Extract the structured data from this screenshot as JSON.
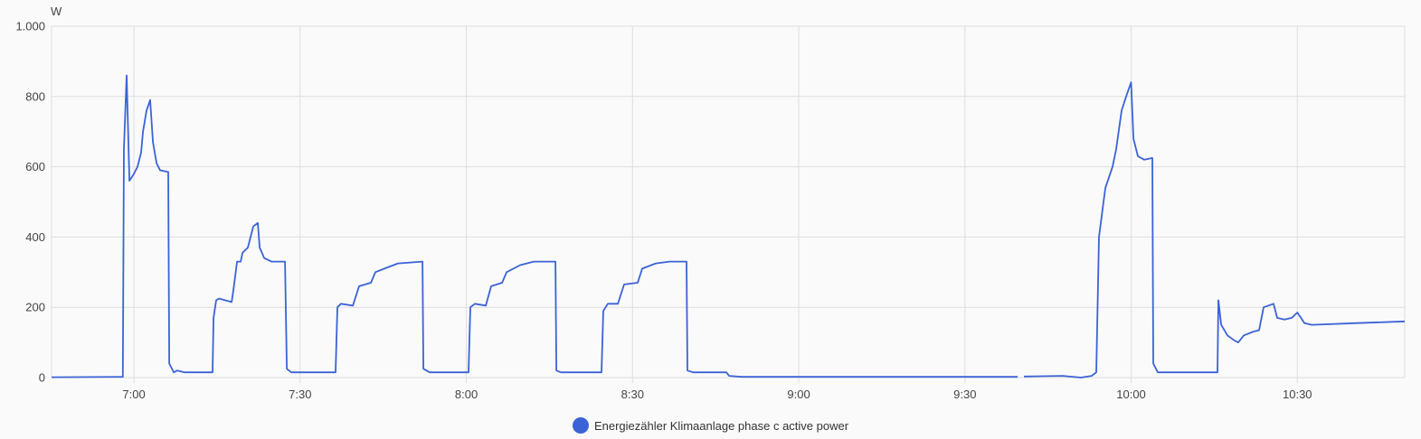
{
  "chart_data": {
    "type": "line",
    "ylabel": "W",
    "ylim": [
      0,
      1000
    ],
    "xlim": [
      "6:45:08",
      "10:49:23"
    ],
    "y_ticks": [
      {
        "value": 0,
        "label": "0"
      },
      {
        "value": 200,
        "label": "200"
      },
      {
        "value": 400,
        "label": "400"
      },
      {
        "value": 600,
        "label": "600"
      },
      {
        "value": 800,
        "label": "800"
      },
      {
        "value": 1000,
        "label": "1.000"
      }
    ],
    "x_ticks": [
      {
        "value": "7:00",
        "label": "7:00"
      },
      {
        "value": "7:30",
        "label": "7:30"
      },
      {
        "value": "8:00",
        "label": "8:00"
      },
      {
        "value": "8:30",
        "label": "8:30"
      },
      {
        "value": "9:00",
        "label": "9:00"
      },
      {
        "value": "9:30",
        "label": "9:30"
      },
      {
        "value": "10:00",
        "label": "10:00"
      },
      {
        "value": "10:30",
        "label": "10:30"
      }
    ],
    "grid": true,
    "legend_placement": "bottom",
    "series": [
      {
        "name": "Energiezähler Klimaanlage phase c active power",
        "color": "#3b63d6",
        "points": [
          [
            "6:45:08",
            1
          ],
          [
            "6:58:00",
            2
          ],
          [
            "6:58:12",
            650
          ],
          [
            "6:58:41",
            860
          ],
          [
            "6:59:11",
            560
          ],
          [
            "7:00:00",
            580
          ],
          [
            "7:00:39",
            600
          ],
          [
            "7:01:18",
            640
          ],
          [
            "7:01:38",
            700
          ],
          [
            "7:02:17",
            760
          ],
          [
            "7:02:56",
            790
          ],
          [
            "7:03:26",
            670
          ],
          [
            "7:04:05",
            610
          ],
          [
            "7:04:44",
            590
          ],
          [
            "7:06:12",
            585
          ],
          [
            "7:06:22",
            40
          ],
          [
            "7:07:11",
            15
          ],
          [
            "7:07:50",
            20
          ],
          [
            "7:09:09",
            15
          ],
          [
            "7:14:12",
            15
          ],
          [
            "7:14:22",
            170
          ],
          [
            "7:14:51",
            220
          ],
          [
            "7:15:21",
            225
          ],
          [
            "7:17:38",
            215
          ],
          [
            "7:17:58",
            250
          ],
          [
            "7:18:37",
            330
          ],
          [
            "7:19:16",
            330
          ],
          [
            "7:19:36",
            355
          ],
          [
            "7:20:34",
            370
          ],
          [
            "7:21:33",
            430
          ],
          [
            "7:22:22",
            440
          ],
          [
            "7:22:42",
            370
          ],
          [
            "7:23:31",
            340
          ],
          [
            "7:24:49",
            330
          ],
          [
            "7:27:16",
            330
          ],
          [
            "7:27:36",
            25
          ],
          [
            "7:28:24",
            15
          ],
          [
            "7:36:24",
            15
          ],
          [
            "7:36:44",
            200
          ],
          [
            "7:37:23",
            210
          ],
          [
            "7:39:31",
            205
          ],
          [
            "7:40:39",
            260
          ],
          [
            "7:42:47",
            270
          ],
          [
            "7:43:35",
            300
          ],
          [
            "7:45:13",
            310
          ],
          [
            "7:47:40",
            325
          ],
          [
            "7:52:05",
            330
          ],
          [
            "7:52:15",
            25
          ],
          [
            "7:53:23",
            15
          ],
          [
            "8:00:24",
            15
          ],
          [
            "8:00:44",
            200
          ],
          [
            "8:01:33",
            210
          ],
          [
            "8:03:31",
            205
          ],
          [
            "8:04:29",
            260
          ],
          [
            "8:06:27",
            270
          ],
          [
            "8:07:16",
            300
          ],
          [
            "8:09:43",
            320
          ],
          [
            "8:12:10",
            330
          ],
          [
            "8:16:05",
            330
          ],
          [
            "8:16:15",
            20
          ],
          [
            "8:17:04",
            15
          ],
          [
            "8:24:24",
            15
          ],
          [
            "8:24:44",
            190
          ],
          [
            "8:25:33",
            210
          ],
          [
            "8:27:21",
            210
          ],
          [
            "8:28:29",
            265
          ],
          [
            "8:30:56",
            270
          ],
          [
            "8:31:45",
            310
          ],
          [
            "8:34:12",
            325
          ],
          [
            "8:36:39",
            330
          ],
          [
            "8:39:45",
            330
          ],
          [
            "8:39:55",
            20
          ],
          [
            "8:40:54",
            15
          ],
          [
            "8:46:56",
            15
          ],
          [
            "8:47:26",
            5
          ],
          [
            "8:49:43",
            2
          ],
          [
            "9:39:31",
            2
          ],
          [
            "9:40:00",
            null
          ],
          [
            "9:40:39",
            3
          ],
          [
            "9:47:40",
            5
          ],
          [
            "9:50:56",
            0
          ],
          [
            "9:52:54",
            5
          ],
          [
            "9:53:43",
            15
          ],
          [
            "9:54:12",
            400
          ],
          [
            "9:55:01",
            500
          ],
          [
            "9:55:21",
            540
          ],
          [
            "9:56:39",
            600
          ],
          [
            "9:57:18",
            650
          ],
          [
            "9:58:17",
            760
          ],
          [
            "9:59:06",
            800
          ],
          [
            "10:00:00",
            840
          ],
          [
            "10:00:25",
            680
          ],
          [
            "10:01:13",
            630
          ],
          [
            "10:02:22",
            620
          ],
          [
            "10:03:50",
            625
          ],
          [
            "10:04:00",
            40
          ],
          [
            "10:04:49",
            15
          ],
          [
            "10:15:35",
            15
          ],
          [
            "10:15:45",
            220
          ],
          [
            "10:16:15",
            150
          ],
          [
            "10:17:23",
            120
          ],
          [
            "10:18:42",
            105
          ],
          [
            "10:19:21",
            100
          ],
          [
            "10:20:20",
            120
          ],
          [
            "10:21:58",
            130
          ],
          [
            "10:23:06",
            135
          ],
          [
            "10:23:55",
            200
          ],
          [
            "10:25:43",
            210
          ],
          [
            "10:26:22",
            170
          ],
          [
            "10:27:40",
            165
          ],
          [
            "10:28:59",
            170
          ],
          [
            "10:30:00",
            185
          ],
          [
            "10:31:18",
            155
          ],
          [
            "10:32:37",
            150
          ],
          [
            "10:40:44",
            155
          ],
          [
            "10:49:23",
            160
          ]
        ]
      }
    ]
  }
}
